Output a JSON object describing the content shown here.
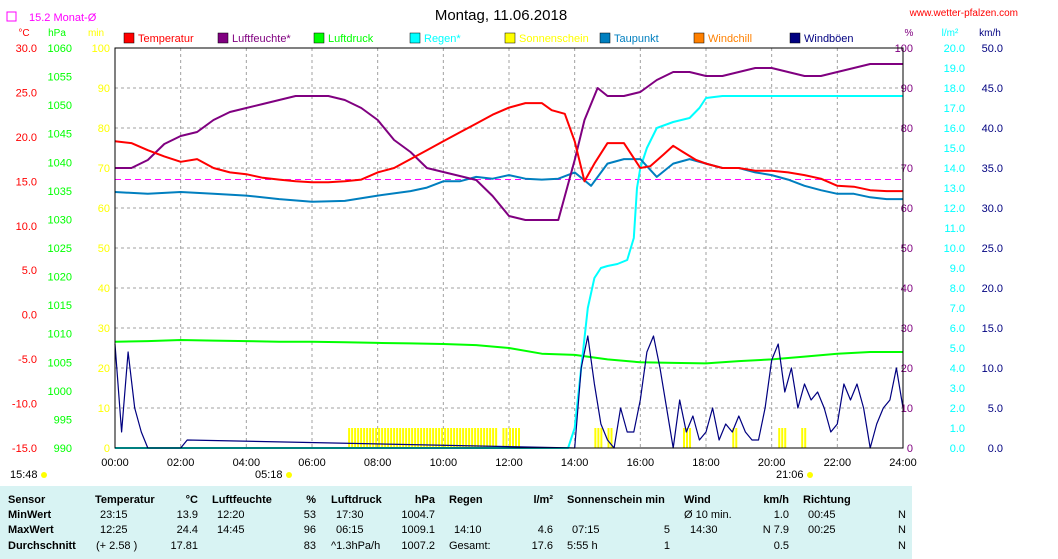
{
  "title": "Montag, 11.06.2018",
  "website": "www.wetter-pfalzen.com",
  "month_avg_label": "15.2 Monat-Ø",
  "colors": {
    "temperature": "#ff0000",
    "humidity": "#800080",
    "pressure": "#00ff00",
    "rain": "#00ffff",
    "sunshine": "#ffff00",
    "dewpoint": "#007fbf",
    "windchill": "#ff8000",
    "windgust": "#000080",
    "month_avg": "#ff00ff",
    "table_bg": "#d8f3f3"
  },
  "axes": {
    "unit_labels": [
      "°C",
      "hPa",
      "min",
      "%",
      "l/m²",
      "km/h"
    ],
    "temp_ticks": [
      "30.0",
      "25.0",
      "20.0",
      "15.0",
      "10.0",
      "5.0",
      "0.0",
      "-5.0",
      "-10.0",
      "-15.0"
    ],
    "hpa_ticks": [
      "1060",
      "1055",
      "1050",
      "1045",
      "1040",
      "1035",
      "1030",
      "1025",
      "1020",
      "1015",
      "1010",
      "1005",
      "1000",
      "995",
      "990"
    ],
    "min_ticks": [
      "100",
      "90",
      "80",
      "70",
      "60",
      "50",
      "40",
      "30",
      "20",
      "10",
      "0"
    ],
    "pct_ticks": [
      "100",
      "90",
      "80",
      "70",
      "60",
      "50",
      "40",
      "30",
      "20",
      "10",
      "0"
    ],
    "rain_ticks": [
      "20.0",
      "19.0",
      "18.0",
      "17.0",
      "16.0",
      "15.0",
      "14.0",
      "13.0",
      "12.0",
      "11.0",
      "10.0",
      "9.0",
      "8.0",
      "7.0",
      "6.0",
      "5.0",
      "4.0",
      "3.0",
      "2.0",
      "1.0",
      "0.0"
    ],
    "wind_ticks": [
      "50.0",
      "45.0",
      "40.0",
      "35.0",
      "30.0",
      "25.0",
      "20.0",
      "15.0",
      "10.0",
      "5.0",
      "0.0"
    ],
    "time_ticks": [
      "00:00",
      "02:00",
      "04:00",
      "06:00",
      "08:00",
      "10:00",
      "12:00",
      "14:00",
      "16:00",
      "18:00",
      "20:00",
      "22:00",
      "24:00"
    ],
    "sunrise_time": "05:18",
    "sunset_time": "21:06",
    "daylength": "15:48"
  },
  "chart_data": {
    "type": "line",
    "xlabel": "",
    "x_unit": "hours",
    "xlim": [
      0,
      24
    ],
    "grid": true,
    "legend_position": "top",
    "month_avg_temp": 15.2,
    "series": [
      {
        "name": "Temperatur",
        "axis": "temp",
        "ylim": [
          -15,
          30
        ],
        "x": [
          0,
          0.5,
          1,
          1.5,
          2,
          2.5,
          3,
          3.5,
          4,
          4.5,
          5,
          5.5,
          6,
          6.5,
          7,
          7.5,
          8,
          8.5,
          9,
          9.5,
          10,
          10.5,
          11,
          11.5,
          12,
          12.5,
          13,
          13.3,
          13.7,
          14,
          14.3,
          14.6,
          15,
          15.5,
          16,
          16.3,
          16.7,
          17,
          17.3,
          17.7,
          18,
          18.5,
          19,
          19.5,
          20,
          20.5,
          21,
          21.5,
          22,
          22.5,
          23,
          23.5,
          24
        ],
        "y": [
          19.5,
          19.3,
          18.5,
          17.8,
          17.2,
          17.5,
          16.5,
          16,
          15.8,
          15.4,
          15.2,
          15.0,
          14.9,
          14.9,
          15.0,
          15.2,
          16,
          16.5,
          17.5,
          18.5,
          19.5,
          20.5,
          21.5,
          22.5,
          23.3,
          23.8,
          23.8,
          23,
          22.6,
          19.5,
          15,
          17,
          19.3,
          19.3,
          16.5,
          16.7,
          18,
          19,
          18.3,
          17.4,
          17.0,
          16.5,
          16.5,
          16.2,
          16.2,
          16.0,
          15.7,
          15.3,
          14.5,
          14.4,
          14.0,
          13.9,
          13.9
        ]
      },
      {
        "name": "Luftfeuchte*",
        "axis": "pct",
        "ylim": [
          0,
          100
        ],
        "x": [
          0,
          0.5,
          1,
          1.5,
          2,
          2.5,
          3,
          3.5,
          4,
          4.5,
          5,
          5.5,
          6,
          6.5,
          7,
          7.5,
          8,
          8.5,
          9,
          9.5,
          10,
          10.5,
          11,
          11.5,
          12,
          12.5,
          13,
          13.5,
          14,
          14.3,
          14.7,
          15,
          15.5,
          16,
          16.5,
          17,
          17.5,
          18,
          18.5,
          19,
          19.5,
          20,
          20.5,
          21,
          21.5,
          22,
          22.5,
          23,
          23.5,
          24
        ],
        "y": [
          70,
          70,
          72,
          76,
          78,
          79,
          82,
          84,
          85,
          86,
          87,
          88,
          88,
          88,
          87,
          85,
          82,
          77,
          74,
          70,
          69,
          68,
          67,
          63,
          58,
          57,
          57,
          57,
          72,
          82,
          90,
          88,
          88,
          89,
          92,
          94,
          94,
          93,
          93,
          94,
          95,
          95,
          94,
          93,
          93,
          94,
          95,
          96,
          96,
          96
        ]
      },
      {
        "name": "Luftdruck",
        "axis": "hpa",
        "ylim": [
          990,
          1060
        ],
        "x": [
          0,
          1,
          2,
          3,
          4,
          5,
          6,
          7,
          8,
          9,
          10,
          11,
          12,
          13,
          14,
          15,
          16,
          17,
          18,
          19,
          20,
          21,
          22,
          23,
          24
        ],
        "y": [
          1008.6,
          1008.7,
          1008.9,
          1008.8,
          1008.7,
          1008.6,
          1008.6,
          1008.5,
          1008.4,
          1008.3,
          1008.2,
          1008.0,
          1007.5,
          1006.5,
          1006.3,
          1005.5,
          1005.0,
          1004.9,
          1004.8,
          1005.2,
          1005.5,
          1006.0,
          1006.5,
          1006.8,
          1006.8
        ]
      },
      {
        "name": "Regen*",
        "axis": "rain",
        "ylim": [
          0,
          20
        ],
        "x": [
          0,
          13.8,
          14,
          14.2,
          14.4,
          14.6,
          14.8,
          15,
          15.3,
          15.6,
          15.8,
          15.9,
          16,
          16.2,
          16.5,
          17,
          17.5,
          17.8,
          18,
          18.5,
          19,
          24
        ],
        "y": [
          0,
          0,
          1,
          4,
          7,
          8.5,
          9,
          9.1,
          9.2,
          9.4,
          10.5,
          13,
          14,
          15,
          16,
          16.3,
          16.5,
          17,
          17.5,
          17.6,
          17.6,
          17.6
        ]
      },
      {
        "name": "Taupunkt",
        "axis": "temp",
        "ylim": [
          -15,
          30
        ],
        "x": [
          0,
          1,
          2,
          3,
          4,
          5,
          6,
          7,
          8,
          9,
          9.5,
          10,
          10.5,
          11,
          11.5,
          12,
          12.5,
          13,
          13.5,
          14,
          14.5,
          15,
          15.5,
          16,
          16.5,
          17,
          17.5,
          18,
          18.5,
          19,
          19.5,
          20,
          20.5,
          21,
          21.5,
          22,
          22.5,
          23,
          23.5,
          24
        ],
        "y": [
          13.8,
          13.6,
          13.8,
          13.6,
          13.4,
          13.0,
          12.7,
          12.8,
          13.4,
          13.9,
          14.3,
          15.0,
          15.0,
          15.5,
          15.3,
          15.7,
          15.3,
          15.2,
          15.3,
          16.0,
          14.5,
          17.0,
          17.5,
          17.5,
          15.5,
          17,
          17.5,
          17,
          16.5,
          16.5,
          16.0,
          15.7,
          15.2,
          14.5,
          14.0,
          13.6,
          13.6,
          13.2,
          13.0,
          13.0
        ]
      },
      {
        "name": "Windböen",
        "axis": "wind",
        "ylim": [
          0,
          50
        ],
        "x": [
          0,
          0.2,
          0.4,
          0.6,
          0.8,
          1,
          1.2,
          2,
          2.2,
          14,
          14.2,
          14.4,
          14.6,
          14.8,
          15,
          15.2,
          15.4,
          15.6,
          15.8,
          16,
          16.2,
          16.4,
          16.6,
          16.8,
          17,
          17.2,
          17.4,
          17.6,
          17.8,
          18,
          18.2,
          18.4,
          18.6,
          18.8,
          19,
          19.2,
          19.4,
          19.6,
          19.8,
          20,
          20.2,
          20.4,
          20.6,
          20.8,
          21,
          21.2,
          21.4,
          21.6,
          21.8,
          22,
          22.2,
          22.4,
          22.6,
          22.8,
          23,
          23.2,
          23.4,
          23.6,
          23.8,
          24
        ],
        "y": [
          13,
          2,
          12,
          5,
          2,
          0,
          0,
          0,
          1,
          0,
          10,
          14,
          8,
          3,
          1,
          0,
          5,
          2,
          2,
          6,
          12,
          14,
          10,
          5,
          0,
          6,
          2,
          4,
          1,
          2,
          5,
          1,
          3,
          2,
          4,
          2,
          1,
          1,
          5,
          11,
          13,
          7,
          10,
          5,
          8,
          6,
          7,
          5,
          2,
          3,
          8,
          6,
          8,
          5,
          0,
          3,
          5,
          6,
          10,
          5
        ]
      }
    ],
    "sunshine_min": {
      "axis": "min",
      "ylim": [
        0,
        100
      ],
      "intervals": [
        [
          7.1,
          11.6,
          5
        ],
        [
          11.8,
          11.9,
          5
        ],
        [
          12.0,
          12.35,
          5
        ],
        [
          14.6,
          14.8,
          5
        ],
        [
          15.0,
          15.1,
          5
        ],
        [
          17.3,
          17.5,
          5
        ],
        [
          18.8,
          18.9,
          5
        ],
        [
          20.2,
          20.45,
          5
        ],
        [
          20.9,
          21.0,
          5
        ]
      ]
    }
  },
  "legend": [
    {
      "label": "Temperatur",
      "color": "#ff0000"
    },
    {
      "label": "Luftfeuchte*",
      "color": "#800080"
    },
    {
      "label": "Luftdruck",
      "color": "#00ff00"
    },
    {
      "label": "Regen*",
      "color": "#00ffff"
    },
    {
      "label": "Sonnenschein",
      "color": "#ffff00"
    },
    {
      "label": "Taupunkt",
      "color": "#007fbf"
    },
    {
      "label": "Windchill",
      "color": "#ff8000"
    },
    {
      "label": "Windböen",
      "color": "#000080"
    }
  ],
  "table": {
    "headers": {
      "sensor": "Sensor",
      "temp": "Temperatur",
      "temp_unit": "°C",
      "hum": "Luftfeuchte",
      "hum_unit": "%",
      "press": "Luftdruck",
      "press_unit": "hPa",
      "rain": "Regen",
      "rain_unit": "l/m²",
      "sun": "Sonnenschein min",
      "wind": "Wind",
      "wind_unit": "km/h",
      "dir": "Richtung"
    },
    "min_row": {
      "label": "MinWert",
      "temp_time": "23:15",
      "temp_val": "13.9",
      "hum_time": "12:20",
      "hum_val": "53",
      "press_time": "17:30",
      "press_val": "1004.7",
      "wind_time": "Ø 10 min.",
      "wind_val": "1.0",
      "dir_time": "00:45",
      "dir_val": "N"
    },
    "max_row": {
      "label": "MaxWert",
      "temp_time": "12:25",
      "temp_val": "24.4",
      "hum_time": "14:45",
      "hum_val": "96",
      "press_time": "06:15",
      "press_val": "1009.1",
      "rain_time": "14:10",
      "rain_val": "4.6",
      "sun_time": "07:15",
      "sun_val": "5",
      "wind_time": "14:30",
      "wind_val": "N 7.9",
      "dir_time": "00:25",
      "dir_val": "N"
    },
    "avg_row": {
      "label": "Durchschnitt",
      "temp_delta": "(+ 2.58 )",
      "temp_val": "17.81",
      "hum_val": "83",
      "press_trend": "^1.3hPa/h",
      "press_val": "1007.2",
      "rain_label": "Gesamt:",
      "rain_val": "17.6",
      "sun_hours": "5:55 h",
      "sun_val": "1",
      "wind_val": "0.5",
      "dir_val": "N"
    }
  }
}
